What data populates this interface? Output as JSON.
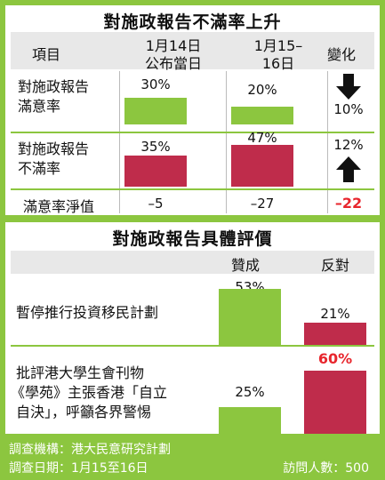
{
  "top": {
    "title": "對施政報告不滿率上升",
    "headers": {
      "item": "項目",
      "col1": [
        "1月14日",
        "公布當日"
      ],
      "col2": [
        "1月15–",
        "16日"
      ],
      "change": "變化"
    },
    "rows": [
      {
        "label": [
          "對施政報告",
          "滿意率"
        ],
        "v1": "30%",
        "v2": "20%",
        "change": "10%",
        "arrow": "down"
      },
      {
        "label": [
          "對施政報告",
          "不滿率"
        ],
        "v1": "35%",
        "v2": "47%",
        "change": "12%",
        "arrow": "up"
      }
    ],
    "net": {
      "label": "滿意率淨值",
      "v1": "–5",
      "v2": "–27",
      "change": "–22"
    }
  },
  "bottom": {
    "title": "對施政報告具體評價",
    "headers": {
      "support": "贊成",
      "oppose": "反對"
    },
    "rows": [
      {
        "label": [
          "暫停推行投資移民計劃"
        ],
        "support": "53%",
        "oppose": "21%"
      },
      {
        "label": [
          "批評港大學生會刊物",
          "《學苑》主張香港「自立",
          "自決」，呼籲各界警惕"
        ],
        "support": "25%",
        "oppose": "60%"
      }
    ]
  },
  "footer": {
    "org": "調查機構：港大民意研究計劃",
    "date": "調查日期：1月15至16日",
    "sample": "訪問人數：500"
  },
  "colors": {
    "accent": "#8cc63f",
    "red_bar": "#bf2c4b",
    "highlight": "#e8262d"
  },
  "chart_data": [
    {
      "type": "bar",
      "title": "對施政報告不滿率上升",
      "categories": [
        "對施政報告滿意率",
        "對施政報告不滿率"
      ],
      "series": [
        {
          "name": "1月14日公布當日",
          "values": [
            30,
            35
          ]
        },
        {
          "name": "1月15–16日",
          "values": [
            20,
            47
          ]
        }
      ],
      "net_satisfaction": {
        "label": "滿意率淨值",
        "values": [
          -5,
          -27
        ],
        "change": -22
      },
      "changes": [
        -10,
        12
      ],
      "ylim": [
        0,
        50
      ]
    },
    {
      "type": "bar",
      "title": "對施政報告具體評價",
      "categories": [
        "暫停推行投資移民計劃",
        "批評港大學生會刊物《學苑》主張香港「自立自決」，呼籲各界警惕"
      ],
      "series": [
        {
          "name": "贊成",
          "values": [
            53,
            25
          ]
        },
        {
          "name": "反對",
          "values": [
            21,
            60
          ]
        }
      ],
      "ylim": [
        0,
        70
      ]
    }
  ]
}
